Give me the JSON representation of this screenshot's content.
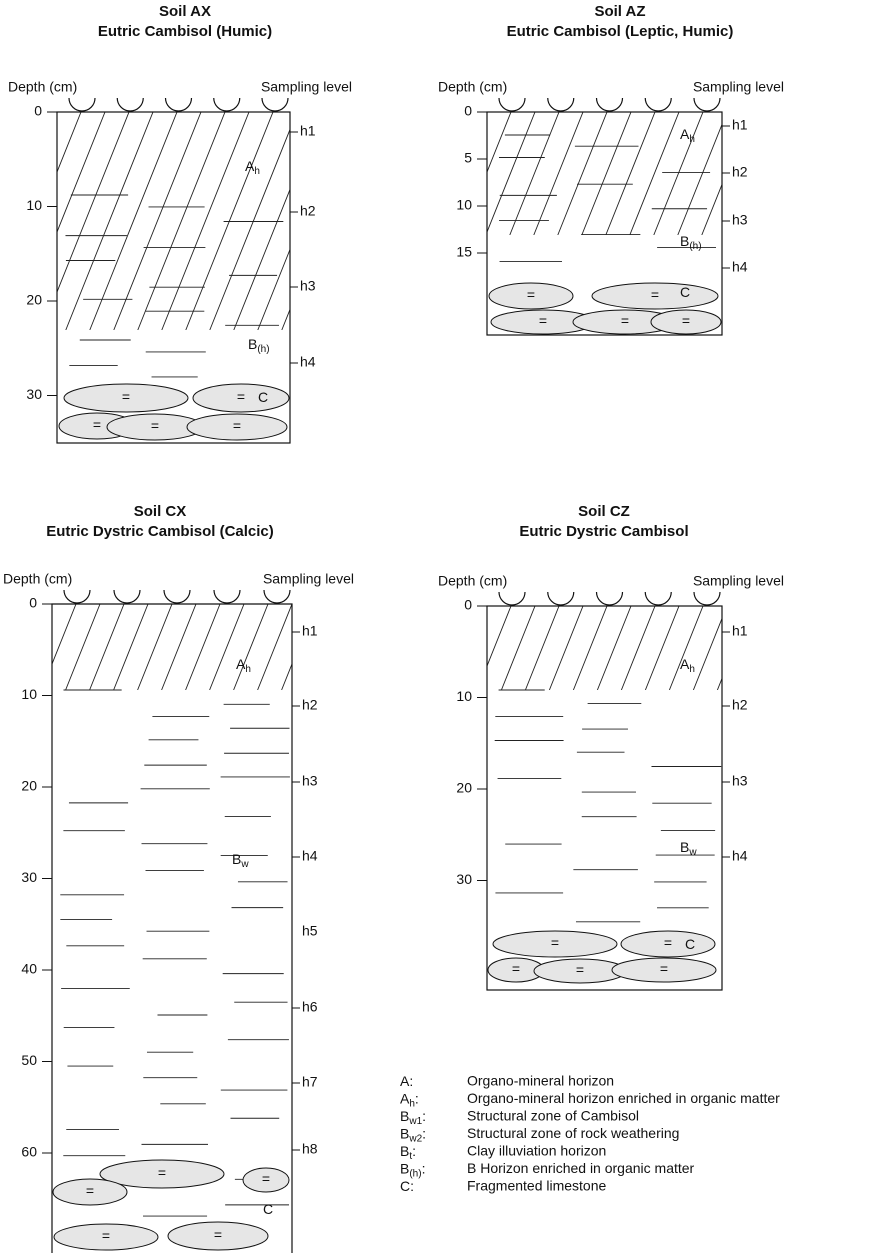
{
  "panels": [
    {
      "title": "Soil AX",
      "subtitle": "Eutric Cambisol (Humic)",
      "depth_label": "Depth (cm)",
      "sampling_label": "Sampling level",
      "depth_ticks": [
        0,
        10,
        20,
        30
      ],
      "sampling_levels": [
        "h1",
        "h2",
        "h3",
        "h4"
      ],
      "horizons": [
        {
          "main": "A",
          "sub": "h"
        },
        {
          "main": "B",
          "sub": "(h)"
        },
        {
          "main": "C"
        }
      ]
    },
    {
      "title": "Soil AZ",
      "subtitle": "Eutric Cambisol (Leptic, Humic)",
      "depth_label": "Depth (cm)",
      "sampling_label": "Sampling level",
      "depth_ticks": [
        0,
        5,
        10,
        15
      ],
      "sampling_levels": [
        "h1",
        "h2",
        "h3",
        "h4"
      ],
      "horizons": [
        {
          "main": "A",
          "sub": "h"
        },
        {
          "main": "B",
          "sub": "(h)"
        },
        {
          "main": "C"
        }
      ]
    },
    {
      "title": "Soil CX",
      "subtitle": "Eutric Dystric Cambisol (Calcic)",
      "depth_label": "Depth (cm)",
      "sampling_label": "Sampling level",
      "depth_ticks": [
        0,
        10,
        20,
        30,
        40,
        50,
        60
      ],
      "sampling_levels": [
        "h1",
        "h2",
        "h3",
        "h4",
        "h5",
        "h6",
        "h7",
        "h8"
      ],
      "horizons": [
        {
          "main": "A",
          "sub": "h"
        },
        {
          "main": "B",
          "sub": "w"
        },
        {
          "main": "C"
        }
      ]
    },
    {
      "title": "Soil CZ",
      "subtitle": "Eutric Dystric Cambisol",
      "depth_label": "Depth (cm)",
      "sampling_label": "Sampling level",
      "depth_ticks": [
        0,
        10,
        20,
        30
      ],
      "sampling_levels": [
        "h1",
        "h2",
        "h3",
        "h4"
      ],
      "horizons": [
        {
          "main": "A",
          "sub": "h"
        },
        {
          "main": "B",
          "sub": "w"
        },
        {
          "main": "C"
        }
      ]
    }
  ],
  "stone_symbol": "=",
  "legend": [
    {
      "main": "A",
      "suffix": ":",
      "text": "Organo-mineral horizon"
    },
    {
      "main": "A",
      "sub": "h",
      "suffix": ":",
      "text": "Organo-mineral horizon enriched in organic matter"
    },
    {
      "main": "B",
      "sub": "w1",
      "suffix": ":",
      "text": "Structural zone of Cambisol"
    },
    {
      "main": "B",
      "sub": "w2",
      "suffix": ":",
      "text": "Structural zone of rock weathering"
    },
    {
      "main": "B",
      "sub": "t",
      "suffix": ":",
      "text": "Clay illuviation horizon"
    },
    {
      "main": "B",
      "sub": "(h)",
      "suffix": ":",
      "text": "B Horizon enriched in organic matter"
    },
    {
      "main": "C",
      "suffix": ":",
      "text": "Fragmented limestone"
    }
  ]
}
